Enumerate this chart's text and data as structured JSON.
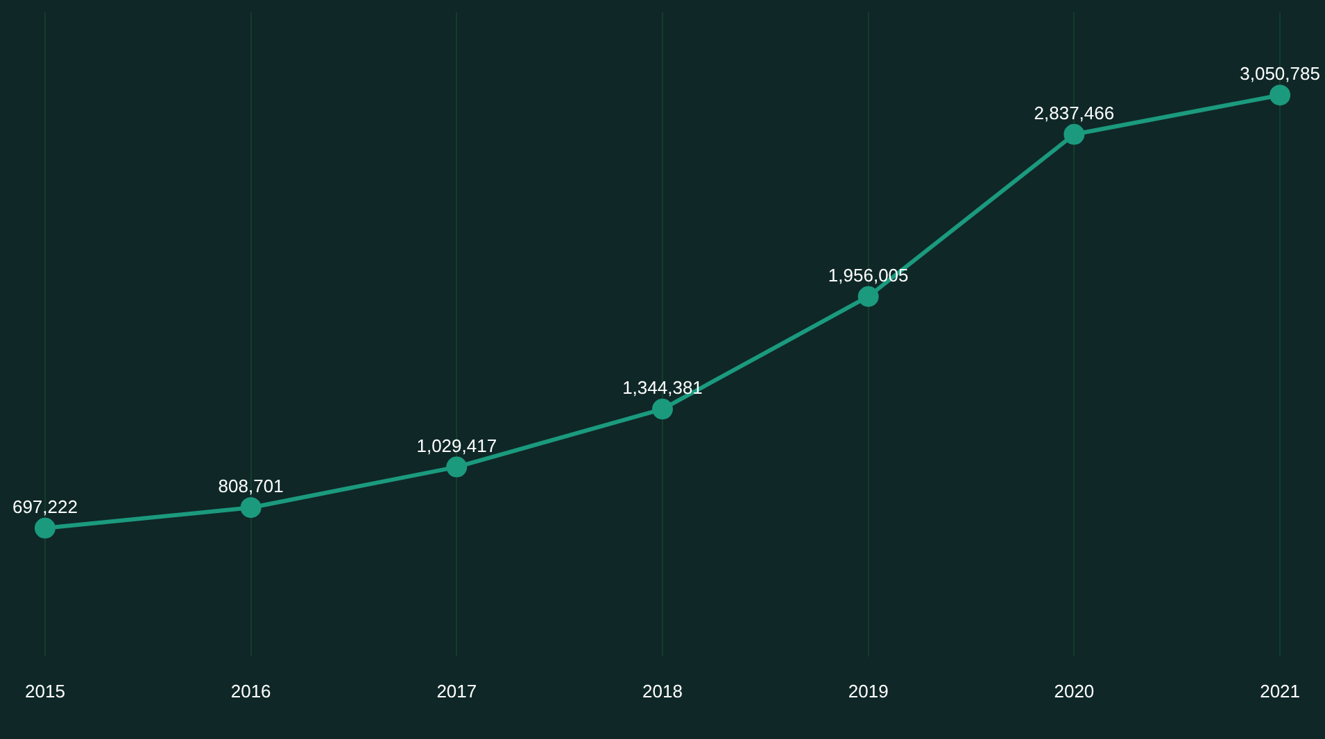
{
  "chart_data": {
    "type": "line",
    "categories": [
      "2015",
      "2016",
      "2017",
      "2018",
      "2019",
      "2020",
      "2021"
    ],
    "series": [
      {
        "color": "#1b9a7e",
        "values": [
          697222,
          808701,
          1029417,
          1344381,
          1956005,
          2837466,
          3050785
        ],
        "value_labels": [
          "697,222",
          "808,701",
          "1,029,417",
          "1,344,381",
          "1,956,005",
          "2,837,466",
          "3,050,785"
        ]
      }
    ],
    "grid": "x",
    "marker": "circle",
    "line_style": "solid",
    "legend": false,
    "tick_labels": "x"
  }
}
